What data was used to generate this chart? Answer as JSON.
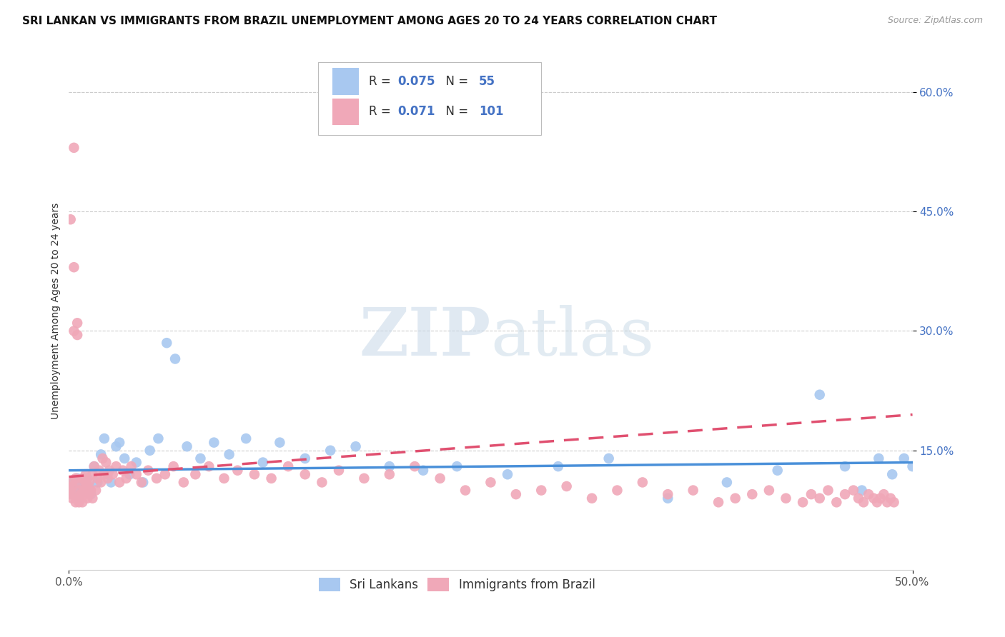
{
  "title": "SRI LANKAN VS IMMIGRANTS FROM BRAZIL UNEMPLOYMENT AMONG AGES 20 TO 24 YEARS CORRELATION CHART",
  "source": "Source: ZipAtlas.com",
  "ylabel": "Unemployment Among Ages 20 to 24 years",
  "xlim": [
    0.0,
    0.5
  ],
  "ylim": [
    0.0,
    0.65
  ],
  "xticks": [
    0.0,
    0.5
  ],
  "xticklabels": [
    "0.0%",
    "50.0%"
  ],
  "yticks": [
    0.15,
    0.3,
    0.45,
    0.6
  ],
  "yticklabels": [
    "15.0%",
    "30.0%",
    "45.0%",
    "60.0%"
  ],
  "grid_color": "#cccccc",
  "background_color": "#ffffff",
  "sri_lankans_color": "#a8c8f0",
  "brazil_color": "#f0a8b8",
  "sri_lankans_line_color": "#4a90d9",
  "brazil_line_color": "#e05070",
  "sri_R": 0.075,
  "sri_N": 55,
  "brazil_R": 0.071,
  "brazil_N": 101,
  "legend_label_sri": "Sri Lankans",
  "legend_label_brazil": "Immigrants from Brazil",
  "watermark_zip": "ZIP",
  "watermark_atlas": "atlas",
  "title_fontsize": 11,
  "axis_label_fontsize": 10,
  "tick_fontsize": 11,
  "legend_fontsize": 12,
  "sri_x": [
    0.001,
    0.002,
    0.003,
    0.004,
    0.005,
    0.006,
    0.007,
    0.008,
    0.009,
    0.01,
    0.011,
    0.012,
    0.013,
    0.015,
    0.017,
    0.019,
    0.021,
    0.023,
    0.025,
    0.028,
    0.03,
    0.033,
    0.036,
    0.04,
    0.044,
    0.048,
    0.053,
    0.058,
    0.063,
    0.07,
    0.078,
    0.086,
    0.095,
    0.105,
    0.115,
    0.125,
    0.14,
    0.155,
    0.17,
    0.19,
    0.21,
    0.23,
    0.26,
    0.29,
    0.32,
    0.355,
    0.39,
    0.42,
    0.445,
    0.46,
    0.47,
    0.48,
    0.488,
    0.495,
    0.5
  ],
  "sri_y": [
    0.1,
    0.11,
    0.095,
    0.105,
    0.115,
    0.09,
    0.108,
    0.102,
    0.112,
    0.098,
    0.115,
    0.105,
    0.095,
    0.13,
    0.11,
    0.145,
    0.165,
    0.12,
    0.11,
    0.155,
    0.16,
    0.14,
    0.12,
    0.135,
    0.11,
    0.15,
    0.165,
    0.285,
    0.265,
    0.155,
    0.14,
    0.16,
    0.145,
    0.165,
    0.135,
    0.16,
    0.14,
    0.15,
    0.155,
    0.13,
    0.125,
    0.13,
    0.12,
    0.13,
    0.14,
    0.09,
    0.11,
    0.125,
    0.22,
    0.13,
    0.1,
    0.14,
    0.12,
    0.14,
    0.13
  ],
  "brazil_x": [
    0.001,
    0.001,
    0.001,
    0.002,
    0.002,
    0.002,
    0.003,
    0.003,
    0.003,
    0.004,
    0.004,
    0.005,
    0.005,
    0.005,
    0.006,
    0.006,
    0.007,
    0.007,
    0.008,
    0.008,
    0.009,
    0.009,
    0.01,
    0.01,
    0.01,
    0.011,
    0.011,
    0.012,
    0.012,
    0.013,
    0.014,
    0.014,
    0.015,
    0.016,
    0.017,
    0.018,
    0.019,
    0.02,
    0.021,
    0.022,
    0.023,
    0.024,
    0.026,
    0.028,
    0.03,
    0.032,
    0.034,
    0.037,
    0.04,
    0.043,
    0.047,
    0.052,
    0.057,
    0.062,
    0.068,
    0.075,
    0.083,
    0.092,
    0.1,
    0.11,
    0.12,
    0.13,
    0.14,
    0.15,
    0.16,
    0.175,
    0.19,
    0.205,
    0.22,
    0.235,
    0.25,
    0.265,
    0.28,
    0.295,
    0.31,
    0.325,
    0.34,
    0.355,
    0.37,
    0.385,
    0.395,
    0.405,
    0.415,
    0.425,
    0.435,
    0.44,
    0.445,
    0.45,
    0.455,
    0.46,
    0.465,
    0.468,
    0.471,
    0.474,
    0.477,
    0.479,
    0.481,
    0.483,
    0.485,
    0.487,
    0.489
  ],
  "brazil_y": [
    0.1,
    0.095,
    0.44,
    0.11,
    0.09,
    0.105,
    0.53,
    0.38,
    0.3,
    0.115,
    0.085,
    0.31,
    0.295,
    0.09,
    0.1,
    0.085,
    0.108,
    0.095,
    0.115,
    0.085,
    0.1,
    0.115,
    0.095,
    0.11,
    0.12,
    0.09,
    0.105,
    0.095,
    0.11,
    0.1,
    0.12,
    0.09,
    0.13,
    0.1,
    0.115,
    0.125,
    0.11,
    0.14,
    0.12,
    0.135,
    0.115,
    0.125,
    0.12,
    0.13,
    0.11,
    0.125,
    0.115,
    0.13,
    0.12,
    0.11,
    0.125,
    0.115,
    0.12,
    0.13,
    0.11,
    0.12,
    0.13,
    0.115,
    0.125,
    0.12,
    0.115,
    0.13,
    0.12,
    0.11,
    0.125,
    0.115,
    0.12,
    0.13,
    0.115,
    0.1,
    0.11,
    0.095,
    0.1,
    0.105,
    0.09,
    0.1,
    0.11,
    0.095,
    0.1,
    0.085,
    0.09,
    0.095,
    0.1,
    0.09,
    0.085,
    0.095,
    0.09,
    0.1,
    0.085,
    0.095,
    0.1,
    0.09,
    0.085,
    0.095,
    0.09,
    0.085,
    0.09,
    0.095,
    0.085,
    0.09,
    0.085
  ]
}
